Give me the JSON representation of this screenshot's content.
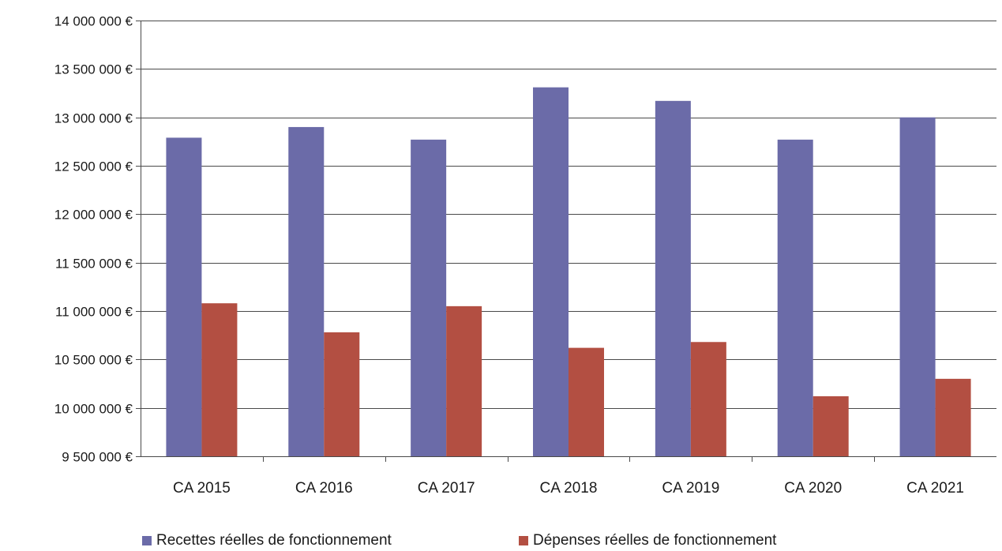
{
  "chart_data": {
    "type": "bar",
    "categories": [
      "CA 2015",
      "CA 2016",
      "CA 2017",
      "CA 2018",
      "CA 2019",
      "CA 2020",
      "CA 2021"
    ],
    "series": [
      {
        "name": "Recettes réelles de fonctionnement",
        "color": "#6B6BA8",
        "values": [
          12790000,
          12900000,
          12770000,
          13310000,
          13170000,
          12770000,
          13000000
        ]
      },
      {
        "name": "Dépenses réelles de fonctionnement",
        "color": "#B34F42",
        "values": [
          11080000,
          10780000,
          11050000,
          10620000,
          10680000,
          10120000,
          10300000
        ]
      }
    ],
    "ylim": [
      9500000,
      14000000
    ],
    "ytick_step": 500000,
    "ytick_labels": [
      "9 500 000 €",
      "10 000 000 €",
      "10 500 000 €",
      "11 000 000 €",
      "11 500 000 €",
      "12 000 000 €",
      "12 500 000 €",
      "13 000 000 €",
      "13 500 000 €",
      "14 000 000 €"
    ],
    "grid": true,
    "legend_position": "bottom",
    "title": "",
    "xlabel": "",
    "ylabel": ""
  }
}
